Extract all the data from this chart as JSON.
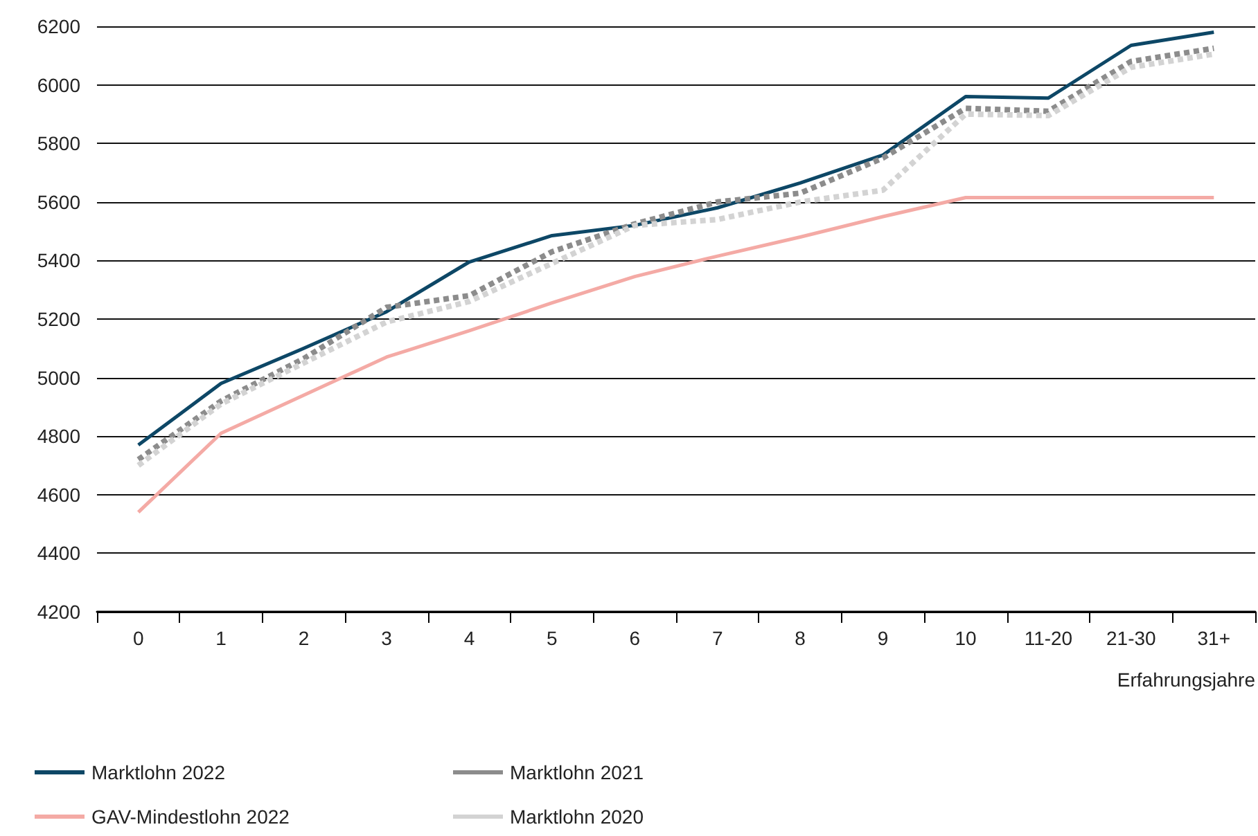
{
  "chart_data": {
    "type": "line",
    "xlabel": "Erfahrungsjahre",
    "categories": [
      "0",
      "1",
      "2",
      "3",
      "4",
      "5",
      "6",
      "7",
      "8",
      "9",
      "10",
      "11-20",
      "21-30",
      "31+"
    ],
    "series": [
      {
        "name": "Marktlohn 2022",
        "color": "#0d4766",
        "line_style": "solid",
        "values": [
          4770,
          4980,
          5100,
          5225,
          5395,
          5485,
          5520,
          5580,
          5665,
          5760,
          5960,
          5955,
          6135,
          6180
        ]
      },
      {
        "name": "Marktlohn 2021",
        "color": "#8c8c8c",
        "line_style": "dotted",
        "values": [
          4720,
          4920,
          5065,
          5240,
          5280,
          5430,
          5525,
          5600,
          5630,
          5750,
          5920,
          5910,
          6080,
          6125
        ]
      },
      {
        "name": "GAV-Mindestlohn 2022",
        "color": "#f4aaa5",
        "line_style": "solid",
        "values": [
          4540,
          4810,
          4940,
          5070,
          5160,
          5255,
          5345,
          5415,
          5480,
          5550,
          5615,
          5615,
          5615,
          5615
        ]
      },
      {
        "name": "Marktlohn 2020",
        "color": "#d3d3d3",
        "line_style": "dotted",
        "values": [
          4700,
          4910,
          5050,
          5190,
          5260,
          5390,
          5520,
          5540,
          5600,
          5640,
          5900,
          5895,
          6060,
          6105
        ]
      }
    ],
    "ylim": [
      4200,
      6200
    ],
    "yticks": [
      4200,
      4400,
      4600,
      4800,
      5000,
      5200,
      5400,
      5600,
      5800,
      6000,
      6200
    ],
    "grid": "y",
    "legend": "bottom left",
    "marker": "none"
  }
}
